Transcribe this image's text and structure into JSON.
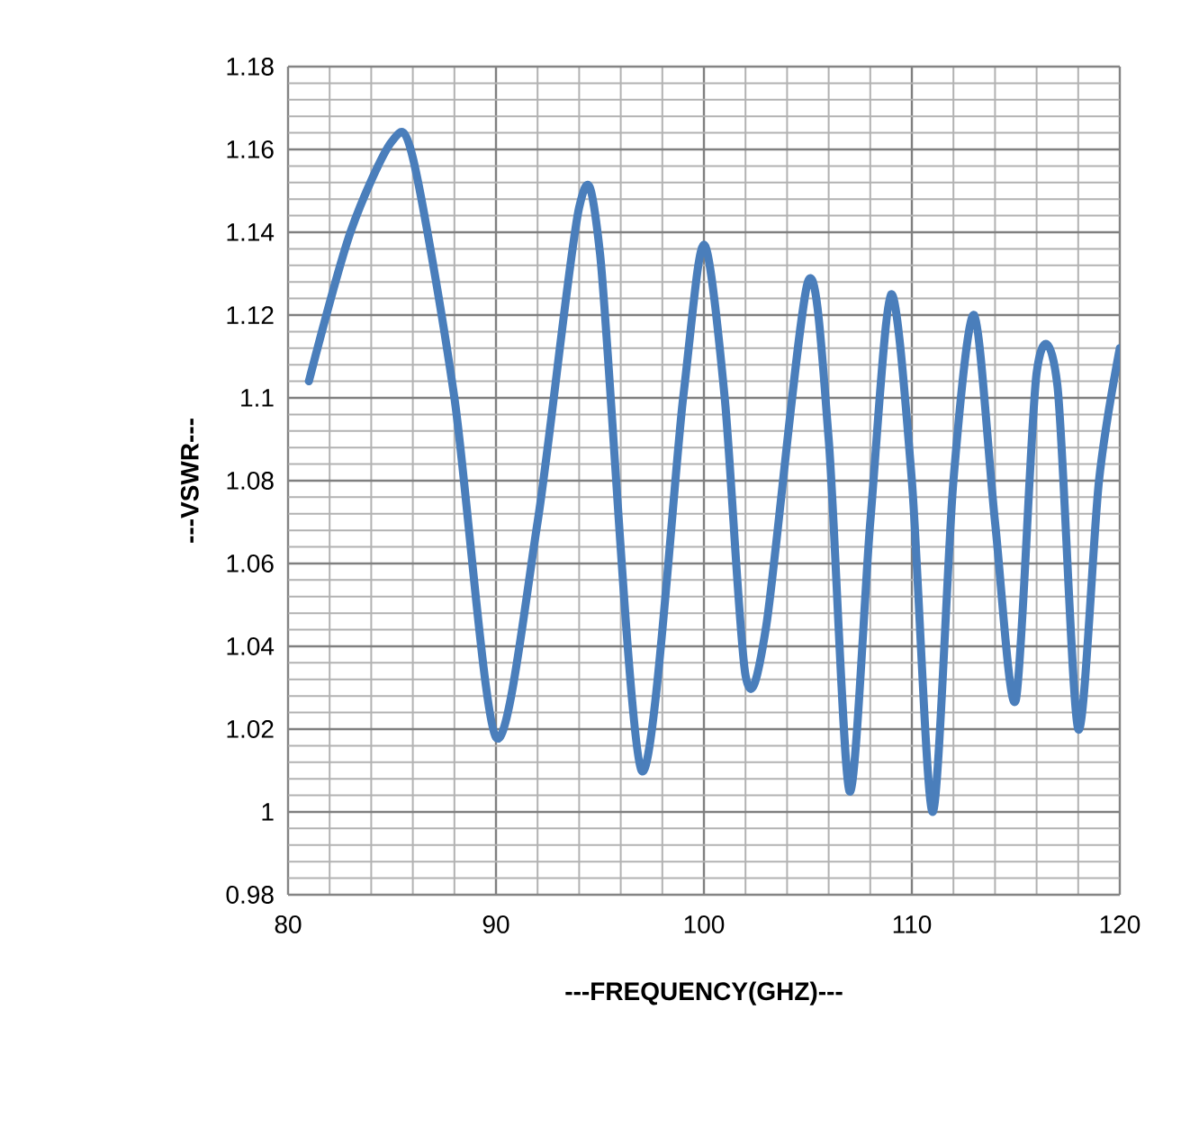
{
  "chart_data": {
    "type": "line",
    "xlabel": "---FREQUENCY(GHZ)---",
    "ylabel": "---VSWR---",
    "x": [
      81,
      83,
      85,
      86,
      88,
      90,
      92,
      94,
      95,
      97,
      99,
      100,
      101,
      102,
      103,
      105,
      106,
      107,
      108,
      109,
      110,
      111,
      112,
      113,
      114,
      115,
      116,
      117,
      118,
      119,
      120
    ],
    "series": [
      {
        "color": "#4a7ebb",
        "values": [
          1.104,
          1.14,
          1.162,
          1.158,
          1.1,
          1.018,
          1.07,
          1.146,
          1.135,
          1.01,
          1.1,
          1.137,
          1.1,
          1.033,
          1.045,
          1.128,
          1.09,
          1.005,
          1.07,
          1.125,
          1.08,
          1.0,
          1.08,
          1.12,
          1.07,
          1.027,
          1.106,
          1.103,
          1.02,
          1.08,
          1.112
        ]
      }
    ],
    "xlim": [
      80,
      120
    ],
    "xticks": [
      80,
      90,
      100,
      110,
      120
    ],
    "ylim": [
      0.98,
      1.18
    ],
    "yticks": [
      {
        "value": 0.98,
        "label": "0.98"
      },
      {
        "value": 1.0,
        "label": "1"
      },
      {
        "value": 1.02,
        "label": "1.02"
      },
      {
        "value": 1.04,
        "label": "1.04"
      },
      {
        "value": 1.06,
        "label": "1.06"
      },
      {
        "value": 1.08,
        "label": "1.08"
      },
      {
        "value": 1.1,
        "label": "1.1"
      },
      {
        "value": 1.12,
        "label": "1.12"
      },
      {
        "value": 1.14,
        "label": "1.14"
      },
      {
        "value": 1.16,
        "label": "1.16"
      },
      {
        "value": 1.18,
        "label": "1.18"
      }
    ],
    "grid": true,
    "marker": "none",
    "line_style": "solid"
  }
}
